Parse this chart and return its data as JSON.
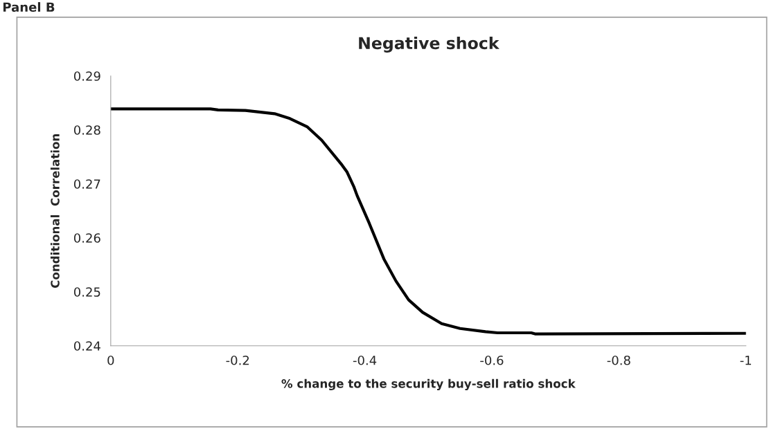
{
  "chart_data": {
    "type": "line",
    "title": "Negative shock",
    "xlabel": "% change to the security buy-sell ratio shock",
    "ylabel": "Conditional  Correlation",
    "annotations": [
      "Panel B"
    ],
    "series": [
      {
        "color": "#000000",
        "x": [
          0,
          -0.157,
          -0.169,
          -0.212,
          -0.258,
          -0.282,
          -0.309,
          -0.332,
          -0.364,
          -0.372,
          -0.383,
          -0.388,
          -0.407,
          -0.43,
          -0.449,
          -0.469,
          -0.491,
          -0.521,
          -0.55,
          -0.59,
          -0.609,
          -0.662,
          -0.668,
          -1
        ],
        "values": [
          0.2839,
          0.2839,
          0.2837,
          0.2836,
          0.283,
          0.2821,
          0.2806,
          0.2781,
          0.2735,
          0.2722,
          0.2694,
          0.2678,
          0.2627,
          0.2561,
          0.252,
          0.2485,
          0.2462,
          0.2441,
          0.2432,
          0.2426,
          0.2424,
          0.2424,
          0.2422,
          0.2423
        ]
      }
    ],
    "xlim": [
      0,
      -1
    ],
    "xticks": [
      0,
      -0.2,
      -0.4,
      -0.6,
      -0.8,
      -1
    ],
    "ylim": [
      0.24,
      0.29
    ],
    "yticks": [
      0.24,
      0.25,
      0.26,
      0.27,
      0.28,
      0.29
    ],
    "grid": false,
    "legend": false,
    "marker": "none",
    "line_style": "solid"
  }
}
